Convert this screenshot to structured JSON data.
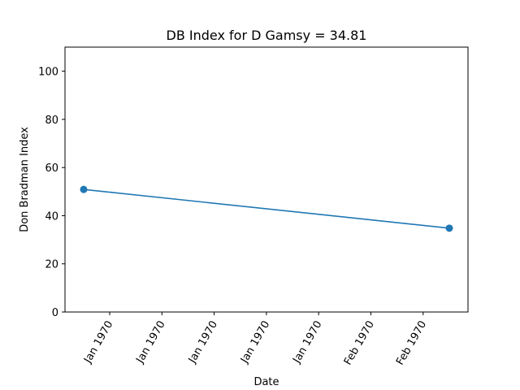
{
  "chart_data": {
    "type": "line",
    "title": "DB Index for D Gamsy = 34.81",
    "xlabel": "Date",
    "ylabel": "Don Bradman Index",
    "ylim": [
      0,
      110
    ],
    "yticks": [
      0,
      20,
      40,
      60,
      80,
      100
    ],
    "xtick_labels": [
      "Jan 1970",
      "Jan 1970",
      "Jan 1970",
      "Jan 1970",
      "Jan 1970",
      "Feb 1970",
      "Feb 1970"
    ],
    "grid": false,
    "color": "#1f77b4",
    "series": [
      {
        "values": [
          50.9,
          34.81
        ]
      }
    ]
  }
}
